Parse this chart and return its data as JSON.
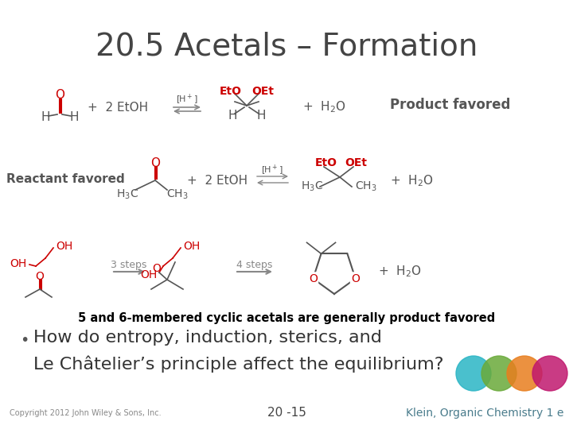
{
  "title": "20.5 Acetals – Formation",
  "title_fontsize": 28,
  "title_color": "#444444",
  "bg_color": "#ffffff",
  "product_favored_text": "Product favored",
  "reactant_favored_text": "Reactant favored",
  "cyclic_text": "5 and 6-membered cyclic acetals are generally product favored",
  "bullet_line1": "How do entropy, induction, sterics, and",
  "bullet_line2": "Le Châtelier’s principle affect the equilibrium?",
  "copyright_text": "Copyright 2012 John Wiley & Sons, Inc.",
  "page_text": "20 -15",
  "klein_text": "Klein, Organic Chemistry 1 e",
  "klein_color": "#4a7c8c",
  "red_color": "#cc0000",
  "dark_gray": "#555555",
  "circle_colors": [
    "#2ab5c5",
    "#6aaa3a",
    "#e87e1e",
    "#c0186e"
  ],
  "arrow_color": "#888888",
  "steps_color": "#888888"
}
